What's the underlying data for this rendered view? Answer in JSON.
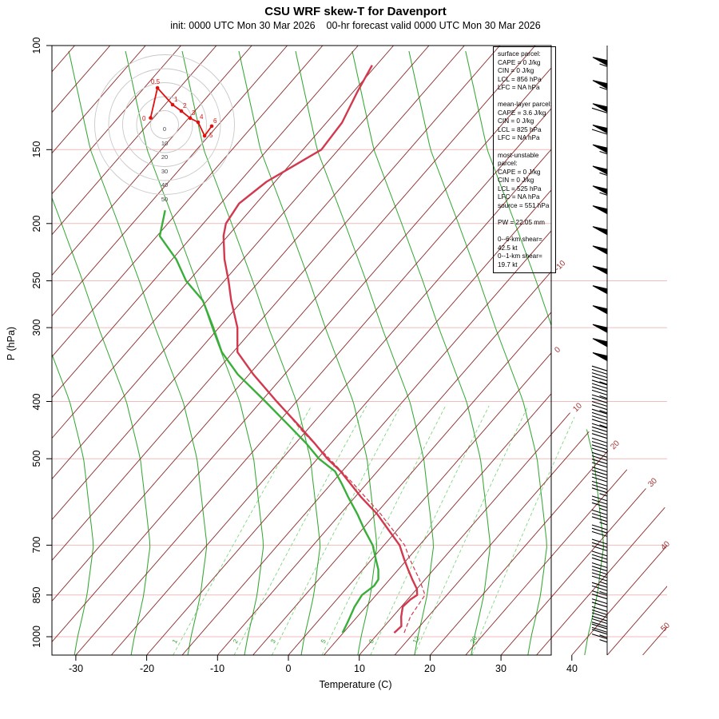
{
  "header": {
    "title": "CSU WRF skew-T for Davenport",
    "subtitle": "init: 0000 UTC Mon 30 Mar 2026    00-hr forecast valid 0000 UTC Mon 30 Mar 2026"
  },
  "axes": {
    "y_label": "P (hPa)",
    "x_label": "Temperature (C)",
    "pressure_ticks": [
      100,
      150,
      200,
      250,
      300,
      400,
      500,
      700,
      850,
      1000
    ],
    "temp_ticks": [
      -30,
      -20,
      -10,
      0,
      10,
      20,
      30,
      40
    ]
  },
  "info_box": {
    "lines": [
      "surface parcel:",
      "CAPE = 0 J/kg",
      "CIN = 0 J/kg",
      "LCL = 856 hPa",
      "LFC = NA hPa",
      "",
      "mean-layer parcel:",
      "CAPE = 3.6 J/kg",
      "CIN = 0 J/kg",
      "LCL = 825 hPa",
      "LFC = NA hPa",
      "",
      "most-unstable parcel:",
      "CAPE = 0 J/kg",
      "CIN = 0 J/kg",
      "LCL = 525 hPa",
      "LFC = NA hPa",
      "source = 551 hPa",
      "",
      "PW =  22.05 mm",
      "",
      "0--6-km shear= 42.5 kt",
      "0--1-km shear= 19.7 kt"
    ]
  },
  "chart_data": {
    "type": "line",
    "subtype": "skew-t-log-p sounding",
    "title": "CSU WRF skew-T for Davenport",
    "xlabel": "Temperature (C)",
    "ylabel": "P (hPa)",
    "pressure_range_hPa": [
      100,
      1074
    ],
    "temp_tick_range_C": [
      -30,
      40
    ],
    "isotherm_step_C": 5,
    "isotherm_labels_C": [
      -10,
      0,
      10,
      20,
      30,
      40,
      50
    ],
    "mixing_ratio_lines_gkg": [
      1,
      2,
      3,
      5,
      8,
      12,
      20
    ],
    "moist_adiabat_base_temps_C": [
      -48,
      -40,
      -32,
      -24,
      -16,
      -8,
      0,
      8,
      16,
      24,
      32,
      40
    ],
    "temperature_profile": [
      {
        "p": 985,
        "t": 12.2
      },
      {
        "p": 960,
        "t": 12.4
      },
      {
        "p": 925,
        "t": 11.2
      },
      {
        "p": 890,
        "t": 10.2
      },
      {
        "p": 865,
        "t": 10.4
      },
      {
        "p": 850,
        "t": 10.8
      },
      {
        "p": 830,
        "t": 10.0
      },
      {
        "p": 800,
        "t": 8.2
      },
      {
        "p": 770,
        "t": 6.4
      },
      {
        "p": 740,
        "t": 4.6
      },
      {
        "p": 700,
        "t": 2.2
      },
      {
        "p": 660,
        "t": -1.2
      },
      {
        "p": 620,
        "t": -4.8
      },
      {
        "p": 580,
        "t": -9.2
      },
      {
        "p": 550,
        "t": -12.4
      },
      {
        "p": 525,
        "t": -15.2
      },
      {
        "p": 500,
        "t": -18.6
      },
      {
        "p": 470,
        "t": -22.4
      },
      {
        "p": 440,
        "t": -26.6
      },
      {
        "p": 400,
        "t": -32.8
      },
      {
        "p": 360,
        "t": -39.4
      },
      {
        "p": 330,
        "t": -44.4
      },
      {
        "p": 300,
        "t": -47.4
      },
      {
        "p": 270,
        "t": -51.6
      },
      {
        "p": 250,
        "t": -54.4
      },
      {
        "p": 230,
        "t": -57.6
      },
      {
        "p": 210,
        "t": -60.6
      },
      {
        "p": 200,
        "t": -61.8
      },
      {
        "p": 185,
        "t": -62.4
      },
      {
        "p": 170,
        "t": -61.2
      },
      {
        "p": 150,
        "t": -57.4
      },
      {
        "p": 135,
        "t": -57.8
      },
      {
        "p": 120,
        "t": -59.4
      },
      {
        "p": 108,
        "t": -60.6
      }
    ],
    "dewpoint_profile": [
      {
        "p": 985,
        "td": 4.9
      },
      {
        "p": 950,
        "td": 4.4
      },
      {
        "p": 925,
        "td": 4.0
      },
      {
        "p": 890,
        "td": 3.4
      },
      {
        "p": 850,
        "td": 3.0
      },
      {
        "p": 820,
        "td": 3.6
      },
      {
        "p": 800,
        "td": 3.4
      },
      {
        "p": 770,
        "td": 2.2
      },
      {
        "p": 740,
        "td": 0.6
      },
      {
        "p": 700,
        "td": -1.6
      },
      {
        "p": 660,
        "td": -4.6
      },
      {
        "p": 620,
        "td": -7.6
      },
      {
        "p": 580,
        "td": -11.0
      },
      {
        "p": 550,
        "td": -13.6
      },
      {
        "p": 525,
        "td": -16.0
      },
      {
        "p": 500,
        "td": -19.8
      },
      {
        "p": 470,
        "td": -23.6
      },
      {
        "p": 440,
        "td": -28.0
      },
      {
        "p": 400,
        "td": -34.4
      },
      {
        "p": 360,
        "td": -41.6
      },
      {
        "p": 330,
        "td": -46.6
      },
      {
        "p": 300,
        "td": -50.8
      },
      {
        "p": 270,
        "td": -55.6
      },
      {
        "p": 250,
        "td": -60.4
      },
      {
        "p": 230,
        "td": -64.4
      },
      {
        "p": 210,
        "td": -69.6
      },
      {
        "p": 190,
        "td": -72.0
      }
    ],
    "virtual_temp_profile": [
      {
        "p": 985,
        "t": 13.6
      },
      {
        "p": 925,
        "t": 12.5
      },
      {
        "p": 850,
        "t": 11.9
      },
      {
        "p": 800,
        "t": 9.2
      },
      {
        "p": 740,
        "t": 5.4
      },
      {
        "p": 700,
        "t": 2.9
      },
      {
        "p": 620,
        "t": -4.3
      },
      {
        "p": 550,
        "t": -12.0
      },
      {
        "p": 500,
        "t": -18.3
      },
      {
        "p": 450,
        "t": -25.4
      },
      {
        "p": 400,
        "t": -32.7
      }
    ],
    "hodograph": {
      "ring_step_kt": 10,
      "rings_kt": [
        10,
        20,
        30,
        40,
        50
      ],
      "axis_labels": [
        "0",
        "10",
        "20",
        "30",
        "40",
        "50"
      ],
      "trace_km_labels": [
        "0",
        "0.5",
        "1",
        "2",
        "3",
        "4",
        "5",
        "6"
      ],
      "trace": [
        {
          "km": "0",
          "u": -10.0,
          "v": 4.8
        },
        {
          "km": "0.5",
          "u": -5.1,
          "v": 26.3
        },
        {
          "km": "1",
          "u": 5.7,
          "v": 14.3
        },
        {
          "km": "2",
          "u": 12.0,
          "v": 9.7
        },
        {
          "km": "3",
          "u": 18.3,
          "v": 4.6
        },
        {
          "km": "4",
          "u": 24.0,
          "v": 1.7
        },
        {
          "km": "5",
          "u": 28.6,
          "v": -8.0
        },
        {
          "km": "6",
          "u": 33.7,
          "v": -1.1
        }
      ]
    },
    "wind_barbs_p_kt": [
      {
        "p": 106,
        "kt": 55
      },
      {
        "p": 116,
        "kt": 55
      },
      {
        "p": 127,
        "kt": 60
      },
      {
        "p": 138,
        "kt": 60
      },
      {
        "p": 149,
        "kt": 55
      },
      {
        "p": 162,
        "kt": 55
      },
      {
        "p": 175,
        "kt": 55
      },
      {
        "p": 189,
        "kt": 50
      },
      {
        "p": 205,
        "kt": 50
      },
      {
        "p": 221,
        "kt": 50
      },
      {
        "p": 239,
        "kt": 50
      },
      {
        "p": 258,
        "kt": 50
      },
      {
        "p": 279,
        "kt": 50
      },
      {
        "p": 300,
        "kt": 50
      },
      {
        "p": 317,
        "kt": 50
      },
      {
        "p": 335,
        "kt": 50
      },
      {
        "p": 355,
        "kt": 45
      },
      {
        "p": 375,
        "kt": 45
      },
      {
        "p": 397,
        "kt": 45
      },
      {
        "p": 420,
        "kt": 45
      },
      {
        "p": 444,
        "kt": 40
      },
      {
        "p": 470,
        "kt": 40
      },
      {
        "p": 497,
        "kt": 40
      },
      {
        "p": 526,
        "kt": 40
      },
      {
        "p": 556,
        "kt": 35
      },
      {
        "p": 589,
        "kt": 35
      },
      {
        "p": 622,
        "kt": 35
      },
      {
        "p": 659,
        "kt": 30
      },
      {
        "p": 697,
        "kt": 30
      },
      {
        "p": 730,
        "kt": 30
      },
      {
        "p": 764,
        "kt": 28
      },
      {
        "p": 794,
        "kt": 25
      },
      {
        "p": 825,
        "kt": 25
      },
      {
        "p": 852,
        "kt": 22
      },
      {
        "p": 879,
        "kt": 22
      },
      {
        "p": 906,
        "kt": 20
      },
      {
        "p": 928,
        "kt": 20
      },
      {
        "p": 950,
        "kt": 18
      },
      {
        "p": 970,
        "kt": 18
      },
      {
        "p": 990,
        "kt": 15
      },
      {
        "p": 1008,
        "kt": 15
      }
    ],
    "colors": {
      "temperature": "#d2384e",
      "dewpoint": "#3aae3a",
      "virtual_temp": "#d2384e",
      "isotherm": "#8b2a2a",
      "isotherm_label": "#a33333",
      "isobar": "#f0bcbc",
      "moist_adiabat": "#35a835",
      "mixing_ratio": "#7ed87e",
      "mixing_ratio_label": "#2fa12f",
      "barbs": "#000000",
      "hodograph_ring": "#c9c9c9",
      "hodograph_trace": "#e01010"
    }
  }
}
